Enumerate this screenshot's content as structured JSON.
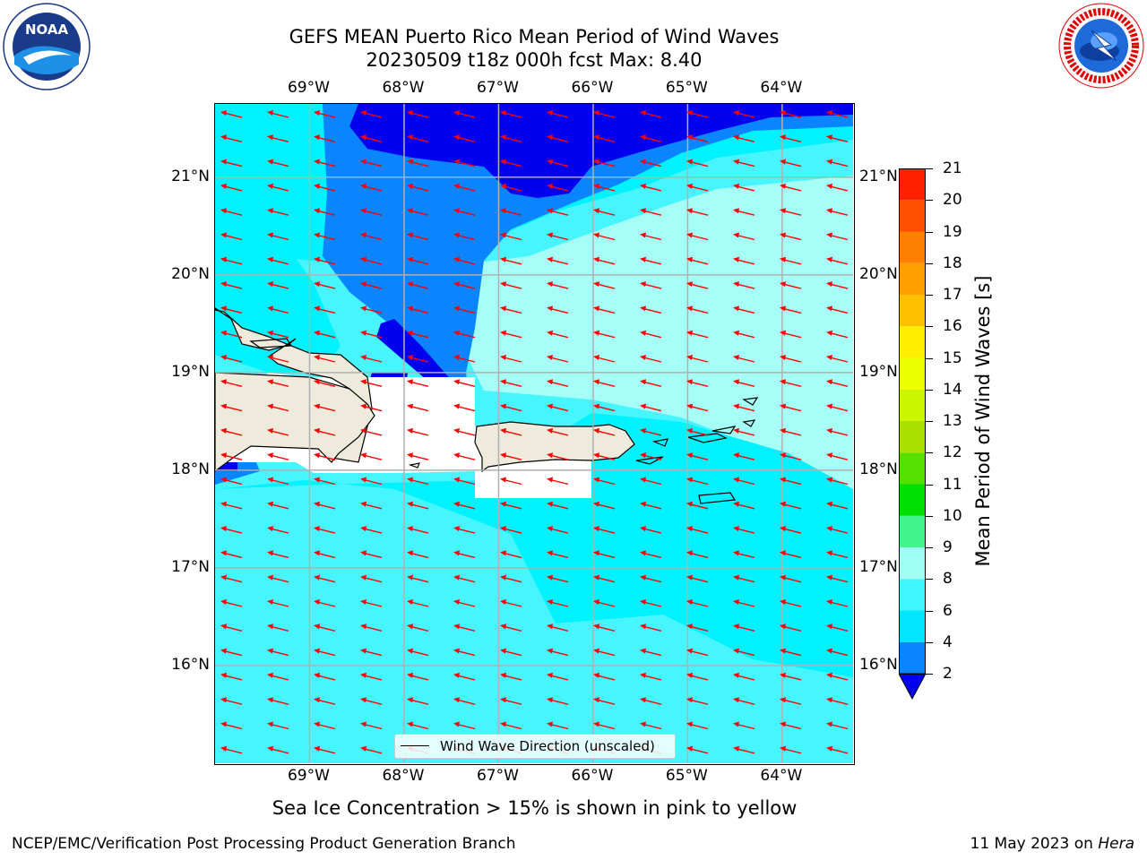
{
  "title": {
    "line1": "GEFS MEAN Puerto Rico Mean Period of Wind Waves",
    "line2": "20230509 t18z 000h fcst   Max: 8.40"
  },
  "axes": {
    "lon_labels": [
      "69°W",
      "68°W",
      "67°W",
      "66°W",
      "65°W",
      "64°W"
    ],
    "lat_labels": [
      "21°N",
      "20°N",
      "19°N",
      "18°N",
      "17°N",
      "16°N"
    ],
    "lon_values": [
      -69,
      -68,
      -67,
      -66,
      -65,
      -64
    ],
    "lat_values": [
      21,
      20,
      19,
      18,
      17,
      16
    ],
    "lon_range": [
      -70.0,
      -63.25
    ],
    "lat_range": [
      15.0,
      21.75
    ]
  },
  "legend": {
    "label": "Wind Wave Direction (unscaled)",
    "color": "#000000"
  },
  "colorbar": {
    "label": "Mean Period of Wind Waves [s]",
    "ticks": [
      "2",
      "4",
      "6",
      "8",
      "9",
      "10",
      "11",
      "12",
      "13",
      "14",
      "15",
      "16",
      "17",
      "18",
      "19",
      "20",
      "21"
    ],
    "levels": [
      2,
      4,
      6,
      8,
      9,
      10,
      11,
      12,
      13,
      14,
      15,
      16,
      17,
      18,
      19,
      20,
      21
    ],
    "colors": [
      "#0a84ff",
      "#00e6ff",
      "#40f5ff",
      "#a0fff4",
      "#42f58a",
      "#00e000",
      "#55e000",
      "#aae000",
      "#ccf500",
      "#eeff00",
      "#ffee00",
      "#ffc000",
      "#ffa000",
      "#ff8000",
      "#ff5000",
      "#ff2000",
      "#ff0000"
    ],
    "extend_min_color": "#0000ee"
  },
  "field_colors": {
    "land": "#eeebdc",
    "no_data": "#ffffff",
    "lt2": "#0000ee",
    "c2_4": "#0a84ff",
    "c4_6": "#00f2ff",
    "c6_8": "#47f5ff",
    "c8_9": "#a5fff6",
    "arrow": "#ff0000",
    "grid": "#b0b0b0"
  },
  "wind_wave_direction": "west-southwest",
  "sea_ice_note": "Sea Ice Concentration > 15% is shown in pink to yellow",
  "footer": {
    "left": "NCEP/EMC/Verification Post Processing Product Generation Branch",
    "right_date": "11 May 2023 on ",
    "right_host": "Hera"
  },
  "logos": {
    "noaa": "NOAA",
    "noaa_ring": "NATIONAL OCEANIC AND ATMOSPHERIC ADMINISTRATION · U.S. DEPARTMENT OF COMMERCE",
    "nws_ring": "NATIONAL WEATHER SERVICE"
  }
}
